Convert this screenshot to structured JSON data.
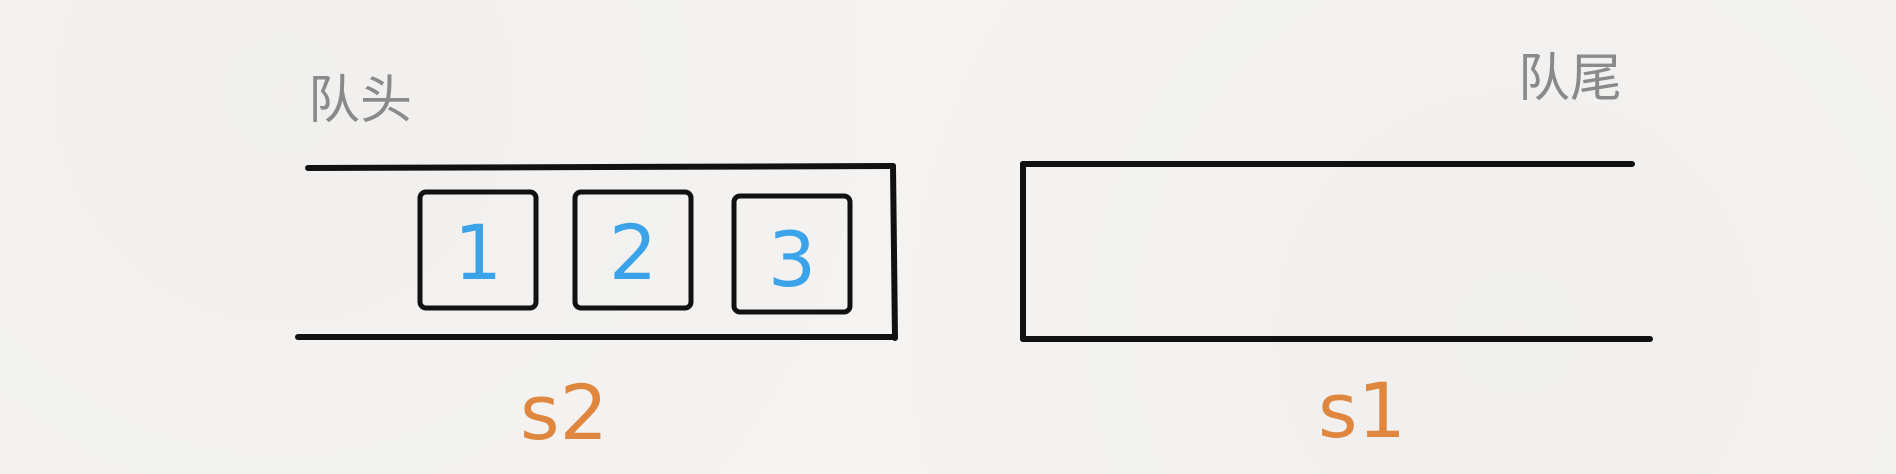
{
  "labels": {
    "head": "队头",
    "tail": "队尾",
    "stack_left": "s2",
    "stack_right": "s1"
  },
  "left_stack": {
    "items": [
      "1",
      "2",
      "3"
    ]
  },
  "colors": {
    "stroke": "#111111",
    "gray_text": "#8a8a8a",
    "orange_text": "#e0873f",
    "blue_text": "#3ba3ea",
    "background": "#f4f3f1"
  }
}
